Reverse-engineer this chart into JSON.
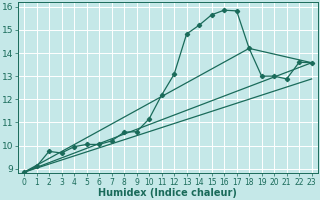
{
  "xlabel": "Humidex (Indice chaleur)",
  "bg_color": "#c5e8e8",
  "grid_color": "#ffffff",
  "line_color": "#1a6b5a",
  "xlim": [
    -0.5,
    23.5
  ],
  "ylim": [
    8.8,
    16.2
  ],
  "xticks": [
    0,
    1,
    2,
    3,
    4,
    5,
    6,
    7,
    8,
    9,
    10,
    11,
    12,
    13,
    14,
    15,
    16,
    17,
    18,
    19,
    20,
    21,
    22,
    23
  ],
  "yticks": [
    9,
    10,
    11,
    12,
    13,
    14,
    15,
    16
  ],
  "line1_x": [
    0,
    1,
    2,
    3,
    4,
    5,
    6,
    7,
    8,
    9,
    10,
    11,
    12,
    13,
    14,
    15,
    16,
    17,
    18,
    19,
    20,
    21,
    22,
    23
  ],
  "line1_y": [
    8.85,
    9.1,
    9.75,
    9.68,
    9.95,
    10.05,
    10.05,
    10.2,
    10.58,
    10.6,
    11.15,
    12.18,
    13.08,
    14.82,
    15.2,
    15.65,
    15.85,
    15.82,
    14.2,
    13.0,
    13.0,
    12.88,
    13.6,
    13.58
  ],
  "line2_x": [
    0,
    18,
    23
  ],
  "line2_y": [
    8.85,
    14.2,
    13.58
  ],
  "line3_x": [
    0,
    23
  ],
  "line3_y": [
    8.85,
    13.58
  ],
  "line4_x": [
    0,
    23
  ],
  "line4_y": [
    8.85,
    12.88
  ]
}
